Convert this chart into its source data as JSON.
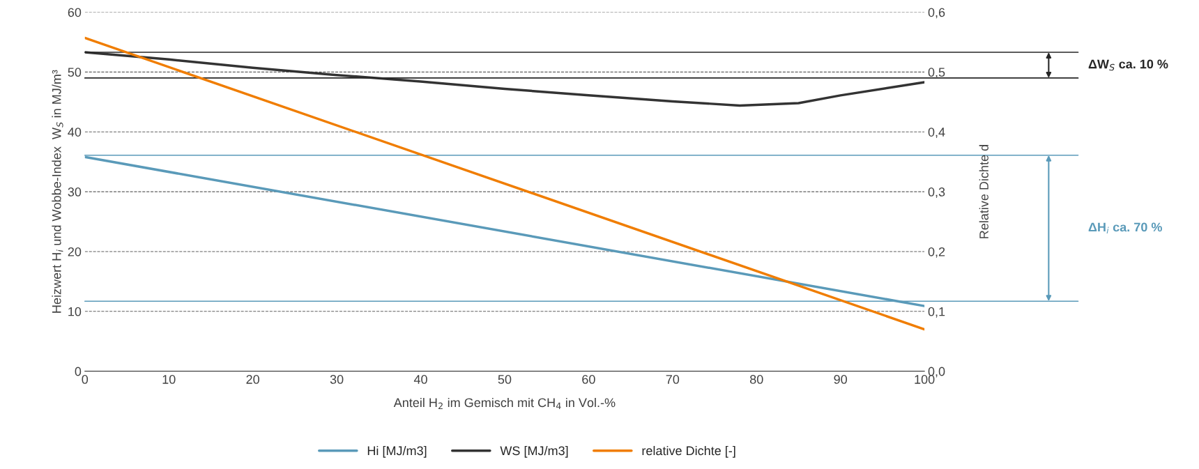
{
  "chart_data": {
    "type": "line",
    "xlabel": "Anteil H$_{2}$ im Gemisch mit CH$_{4}$ in Vol.-%",
    "ylabel": "Heizwert H$_{i}$ und Wobbe-Index  W$_{S}$ in MJ/m³",
    "y2label": "Relative Dichte d",
    "xlim": [
      0,
      100
    ],
    "xticks": [
      0,
      10,
      20,
      30,
      40,
      50,
      60,
      70,
      80,
      90,
      100
    ],
    "ylim": [
      0,
      60
    ],
    "yticks": [
      0,
      10,
      20,
      30,
      40,
      50,
      60
    ],
    "y2lim": [
      0,
      0.6
    ],
    "y2ticks": [
      {
        "value": 0,
        "label": "0,0"
      },
      {
        "value": 0.1,
        "label": "0,1"
      },
      {
        "value": 0.2,
        "label": "0,2"
      },
      {
        "value": 0.3,
        "label": "0,3"
      },
      {
        "value": 0.4,
        "label": "0,4"
      },
      {
        "value": 0.5,
        "label": "0,5"
      },
      {
        "value": 0.6,
        "label": "0,6"
      }
    ],
    "grid": "y",
    "legend": "bottom",
    "marker": "none",
    "line_style": "solid",
    "series": [
      {
        "name": "Hi [MJ/m3]",
        "color": "#5a9ab9",
        "x": [
          0,
          100
        ],
        "values": [
          35.8,
          10.9
        ]
      },
      {
        "name": "WS [MJ/m3]",
        "color": "#333333",
        "x": [
          0,
          10,
          20,
          30,
          40,
          50,
          60,
          70,
          78,
          85,
          90,
          100
        ],
        "values": [
          53.3,
          52.1,
          50.7,
          49.5,
          48.4,
          47.2,
          46.1,
          45.1,
          44.4,
          44.8,
          46.1,
          48.3
        ]
      },
      {
        "name": "relative Dichte [-]",
        "color": "#f07d00",
        "axis": "y2",
        "x": [
          0,
          100
        ],
        "values": [
          0.557,
          0.07
        ]
      }
    ],
    "ref_lines": [
      {
        "axis": "y",
        "value": 53.3,
        "color": "#262626"
      },
      {
        "axis": "y",
        "value": 49.0,
        "color": "#262626"
      },
      {
        "axis": "y",
        "value": 36.1,
        "color": "#5a9ab9"
      },
      {
        "axis": "y",
        "value": 11.7,
        "color": "#5a9ab9"
      }
    ],
    "annotations": [
      "ΔW$_{S}$ ca. 10 %",
      "ΔH$_{i}$ ca. 70 %"
    ]
  }
}
